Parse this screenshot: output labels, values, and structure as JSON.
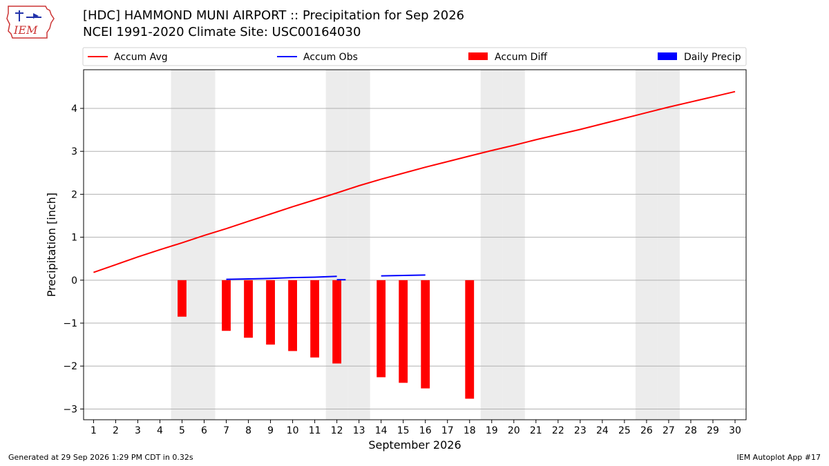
{
  "title_line1": "[HDC] HAMMOND MUNI AIRPORT :: Precipitation for Sep 2026",
  "title_line2": "NCEI 1991-2020 Climate Site: USC00164030",
  "logo_text": "IEM",
  "footer_left": "Generated at 29 Sep 2026 1:29 PM CDT in 0.32s",
  "footer_right": "IEM Autoplot App #17",
  "colors": {
    "avg": "#ff0000",
    "obs": "#0000ff",
    "diff": "#ff0000",
    "daily": "#0000ff",
    "weekend": "#ececec",
    "grid": "#b0b0b0"
  },
  "chart_data": {
    "type": "bar",
    "xlabel": "September 2026",
    "ylabel": "Precipitation [inch]",
    "xlim": [
      0.55,
      30.5
    ],
    "ylim": [
      -3.25,
      4.9
    ],
    "x_ticks": [
      1,
      2,
      3,
      4,
      5,
      6,
      7,
      8,
      9,
      10,
      11,
      12,
      13,
      14,
      15,
      16,
      17,
      18,
      19,
      20,
      21,
      22,
      23,
      24,
      25,
      26,
      27,
      28,
      29,
      30
    ],
    "y_ticks": [
      -3,
      -2,
      -1,
      0,
      1,
      2,
      3,
      4
    ],
    "grid": true,
    "legend_position": "top",
    "legend": [
      "Accum Avg",
      "Accum Obs",
      "Accum Diff",
      "Daily Precip"
    ],
    "weekend_days": [
      5,
      6,
      12,
      13,
      19,
      20,
      26,
      27
    ],
    "series": [
      {
        "name": "Accum Avg",
        "kind": "line",
        "points": [
          [
            1,
            0.18
          ],
          [
            2,
            0.36
          ],
          [
            3,
            0.54
          ],
          [
            4,
            0.71
          ],
          [
            5,
            0.87
          ],
          [
            6,
            1.04
          ],
          [
            7,
            1.2
          ],
          [
            8,
            1.37
          ],
          [
            9,
            1.54
          ],
          [
            10,
            1.71
          ],
          [
            11,
            1.87
          ],
          [
            12,
            2.03
          ],
          [
            13,
            2.2
          ],
          [
            14,
            2.35
          ],
          [
            15,
            2.49
          ],
          [
            16,
            2.63
          ],
          [
            17,
            2.76
          ],
          [
            18,
            2.89
          ],
          [
            19,
            3.02
          ],
          [
            20,
            3.14
          ],
          [
            21,
            3.27
          ],
          [
            22,
            3.39
          ],
          [
            23,
            3.51
          ],
          [
            24,
            3.64
          ],
          [
            25,
            3.77
          ],
          [
            26,
            3.9
          ],
          [
            27,
            4.03
          ],
          [
            28,
            4.15
          ],
          [
            29,
            4.27
          ],
          [
            30,
            4.39
          ]
        ]
      },
      {
        "name": "Accum Obs",
        "kind": "line",
        "segments": [
          [
            [
              7,
              0.02
            ],
            [
              8,
              0.03
            ],
            [
              9,
              0.04
            ],
            [
              10,
              0.06
            ],
            [
              11,
              0.07
            ],
            [
              12,
              0.09
            ]
          ],
          [
            [
              12,
              0.01
            ],
            [
              12.4,
              0.01
            ]
          ],
          [
            [
              14,
              0.1
            ],
            [
              15,
              0.11
            ],
            [
              16,
              0.12
            ]
          ]
        ]
      },
      {
        "name": "Accum Diff",
        "kind": "bar",
        "points": [
          [
            5,
            -0.85
          ],
          [
            7,
            -1.18
          ],
          [
            8,
            -1.34
          ],
          [
            9,
            -1.5
          ],
          [
            10,
            -1.65
          ],
          [
            11,
            -1.8
          ],
          [
            12,
            -1.94
          ],
          [
            14,
            -2.26
          ],
          [
            15,
            -2.39
          ],
          [
            16,
            -2.52
          ],
          [
            18,
            -2.76
          ]
        ]
      },
      {
        "name": "Daily Precip",
        "kind": "bar",
        "points": []
      }
    ]
  }
}
